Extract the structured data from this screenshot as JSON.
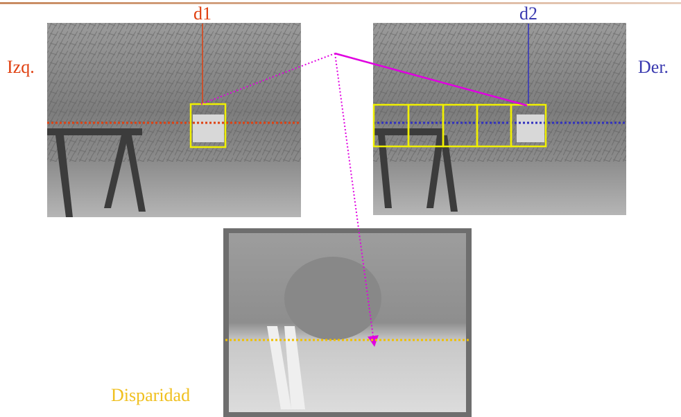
{
  "labels": {
    "d1": "d1",
    "d2": "d2",
    "left": "Izq.",
    "right": "Der.",
    "disparity": "Disparidad"
  }
}
